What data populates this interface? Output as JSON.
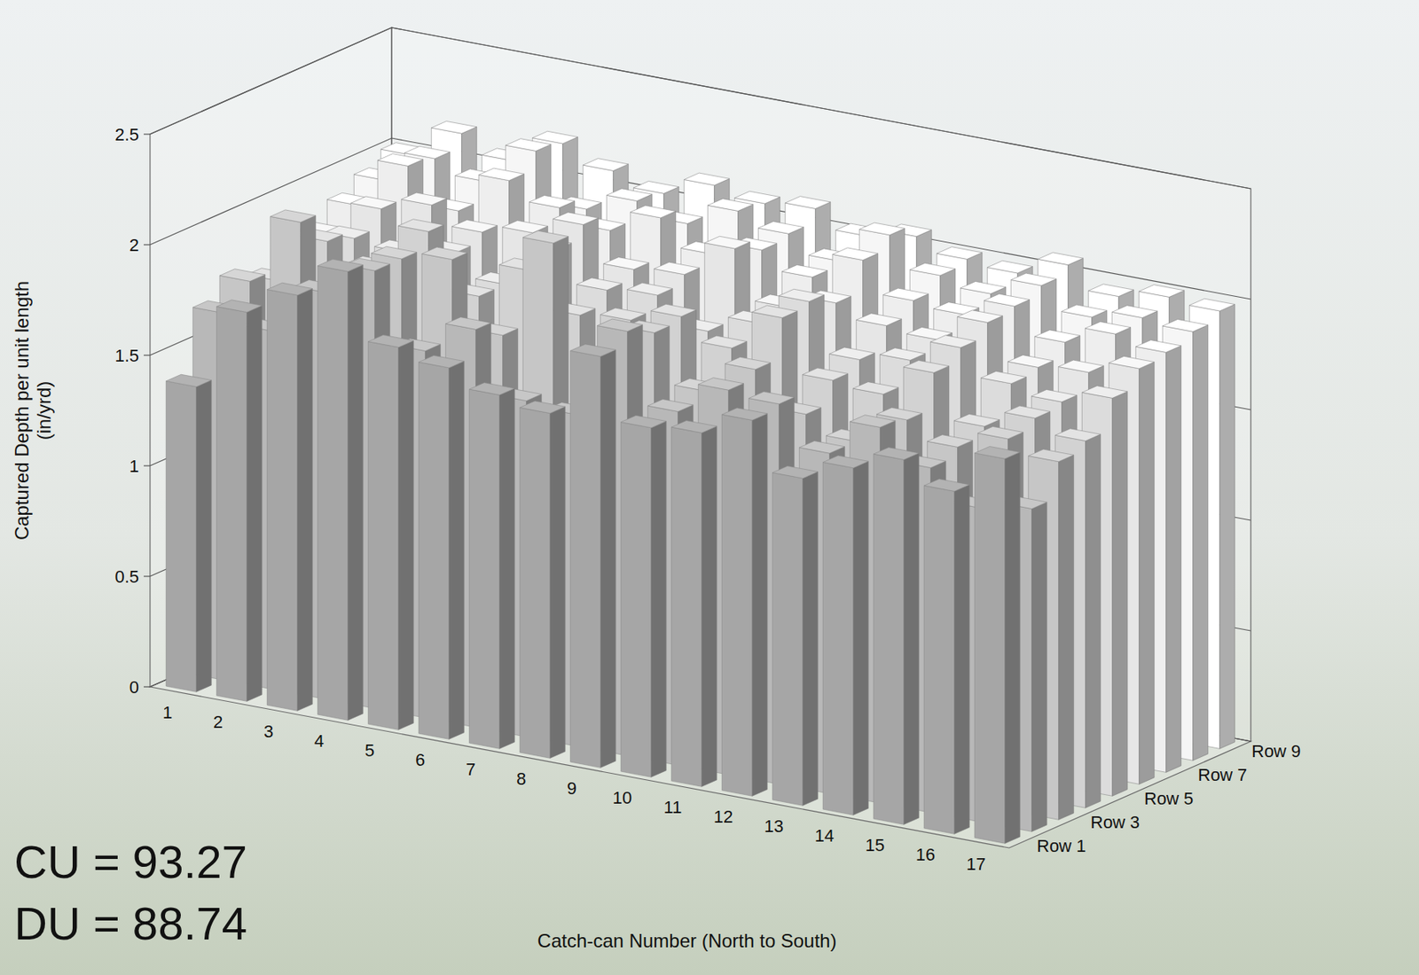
{
  "chart_data": {
    "type": "bar",
    "x_label": "Catch-can Number (North to South)",
    "y_label": "Captured Depth per unit length (in/yrd)",
    "categories": [
      "1",
      "2",
      "3",
      "4",
      "5",
      "6",
      "7",
      "8",
      "9",
      "10",
      "11",
      "12",
      "13",
      "14",
      "15",
      "16",
      "17"
    ],
    "rows": [
      "Row 1",
      null,
      "Row 3",
      null,
      "Row 5",
      null,
      "Row 7",
      null,
      "Row 9"
    ],
    "series": [
      {
        "color": "#a6a6a6",
        "values": [
          1.38,
          1.76,
          1.88,
          2.03,
          1.73,
          1.68,
          1.6,
          1.56,
          1.86,
          1.58,
          1.6,
          1.7,
          1.48,
          1.57,
          1.65,
          1.55,
          1.74
        ]
      },
      {
        "color": "#b8b8b8",
        "values": [
          1.66,
          1.62,
          1.84,
          1.98,
          1.66,
          1.8,
          1.52,
          1.5,
          1.92,
          1.6,
          1.74,
          1.72,
          1.54,
          1.7,
          1.56,
          1.42,
          1.46
        ]
      },
      {
        "color": "#c6c6c6",
        "values": [
          1.75,
          2.06,
          1.76,
          1.98,
          2.02,
          1.72,
          2.18,
          1.7,
          1.86,
          1.64,
          1.78,
          1.62,
          1.54,
          1.68,
          1.6,
          1.68,
          1.62
        ]
      },
      {
        "color": "#d2d2d2",
        "values": [
          1.7,
          1.92,
          1.84,
          2.05,
          1.8,
          1.96,
          1.8,
          1.82,
          1.88,
          1.78,
          1.96,
          1.72,
          1.7,
          1.84,
          1.64,
          1.72,
          1.66
        ]
      },
      {
        "color": "#dcdcdc",
        "values": [
          1.82,
          1.88,
          1.86,
          1.9,
          1.8,
          2.0,
          1.86,
          1.88,
          1.76,
          1.84,
          1.98,
          1.76,
          1.8,
          1.9,
          1.78,
          1.74,
          1.8
        ]
      },
      {
        "color": "#e6e6e6",
        "values": [
          1.8,
          1.96,
          2.02,
          1.94,
          1.98,
          2.06,
          1.9,
          1.92,
          2.08,
          1.86,
          1.92,
          1.86,
          1.84,
          1.96,
          1.8,
          1.82,
          1.88
        ]
      },
      {
        "color": "#eeeeee",
        "values": [
          1.88,
          2.1,
          1.94,
          2.12,
          2.04,
          1.98,
          2.08,
          1.96,
          2.02,
          1.94,
          2.06,
          1.92,
          1.9,
          1.98,
          1.86,
          1.94,
          1.9
        ]
      },
      {
        "color": "#f6f6f6",
        "values": [
          1.94,
          2.08,
          2.02,
          2.2,
          1.98,
          2.06,
          2.0,
          2.1,
          2.04,
          1.96,
          2.12,
          1.98,
          1.94,
          2.02,
          1.92,
          1.96,
          1.94
        ]
      },
      {
        "color": "#ffffff",
        "values": [
          2.0,
          2.14,
          2.06,
          2.18,
          2.1,
          2.04,
          2.12,
          2.08,
          2.1,
          2.02,
          2.06,
          2.0,
          1.98,
          2.06,
          1.96,
          2.0,
          1.98
        ]
      }
    ],
    "ylim": [
      0,
      2.5
    ],
    "yticks": [
      0,
      0.5,
      1,
      1.5,
      2,
      2.5
    ],
    "grid": true,
    "annotations": [
      "CU = 93.27",
      "DU = 88.74"
    ]
  }
}
